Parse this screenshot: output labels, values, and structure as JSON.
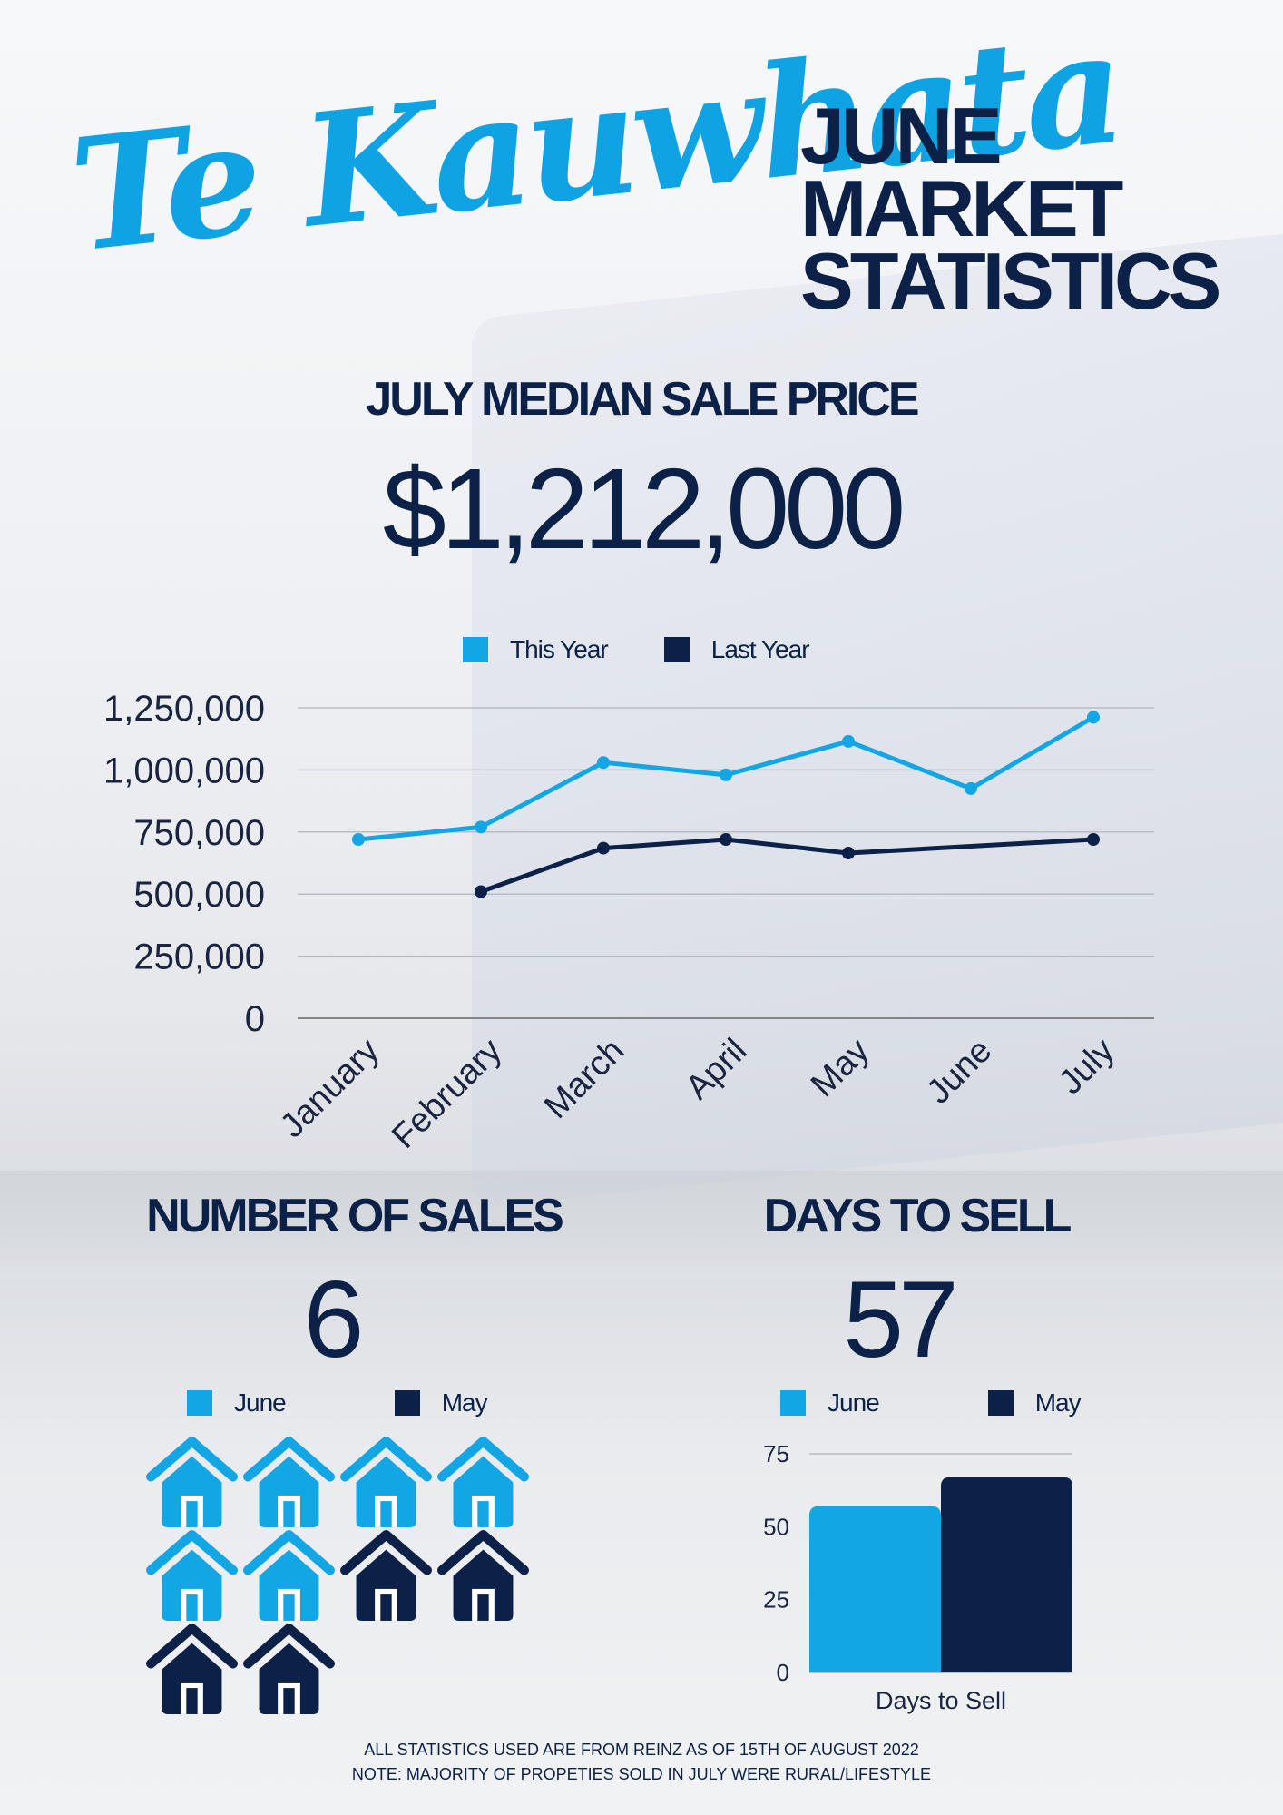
{
  "header": {
    "script_title": "Te Kauwhata",
    "heading_lines": [
      "JUNE",
      "MARKET",
      "STATISTICS"
    ]
  },
  "median": {
    "title": "JULY MEDIAN SALE PRICE",
    "value": "$1,212,000"
  },
  "colors": {
    "this_year": "#12a6e4",
    "last_year": "#0c2148",
    "june": "#12a6e4",
    "may": "#0c2148"
  },
  "chart_data": [
    {
      "type": "line",
      "x": [
        "January",
        "February",
        "March",
        "April",
        "May",
        "June",
        "July"
      ],
      "series": [
        {
          "name": "This Year",
          "values": [
            720000,
            770000,
            1030000,
            980000,
            1115000,
            925000,
            1212000
          ]
        },
        {
          "name": "Last Year",
          "values": [
            null,
            510000,
            685000,
            720000,
            665000,
            null,
            720000
          ]
        }
      ],
      "yticks": [
        "1,250,000",
        "1,000,000",
        "750,000",
        "500,000",
        "250,000",
        "0"
      ],
      "ylim": [
        0,
        1250000
      ],
      "grid": true,
      "legend_position": "top"
    },
    {
      "type": "bar",
      "categories": [
        "Days to Sell"
      ],
      "series": [
        {
          "name": "June",
          "values": [
            57
          ]
        },
        {
          "name": "May",
          "values": [
            67
          ]
        }
      ],
      "yticks": [
        "75",
        "50",
        "25",
        "0"
      ],
      "xlabel": "Days to Sell",
      "ylim": [
        0,
        75
      ],
      "legend_position": "top"
    }
  ],
  "sales": {
    "title": "NUMBER OF SALES",
    "value": "6",
    "legend": [
      "June",
      "May"
    ],
    "june_count": 6,
    "may_count": 4
  },
  "days": {
    "title": "DAYS TO SELL",
    "value": "57",
    "legend": [
      "June",
      "May"
    ]
  },
  "footer": {
    "line1": "ALL STATISTICS USED  ARE FROM REINZ AS OF 15TH OF AUGUST 2022",
    "line2": "NOTE: MAJORITY OF PROPETIES SOLD IN JULY WERE RURAL/LIFESTYLE"
  }
}
